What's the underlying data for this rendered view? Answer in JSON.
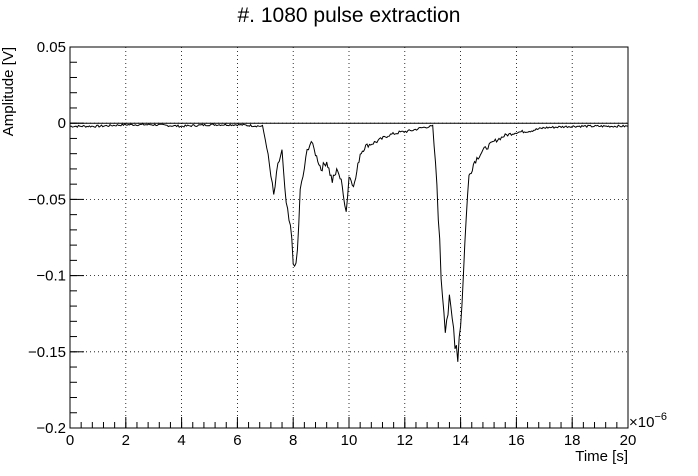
{
  "chart_data": {
    "type": "line",
    "title": "#. 1080 pulse extraction",
    "xlabel": "Time [s]",
    "ylabel": "Amplitude [V]",
    "x_multiplier_label": "×10",
    "x_multiplier_exp": "−6",
    "xlim": [
      0,
      20
    ],
    "ylim": [
      -0.2,
      0.05
    ],
    "grid": true,
    "x_ticks": [
      0,
      2,
      4,
      6,
      8,
      10,
      12,
      14,
      16,
      18,
      20
    ],
    "x_tick_labels": [
      "0",
      "2",
      "4",
      "6",
      "8",
      "10",
      "12",
      "14",
      "16",
      "18",
      "20"
    ],
    "y_ticks": [
      -0.2,
      -0.15,
      -0.1,
      -0.05,
      0,
      0.05
    ],
    "y_tick_labels": [
      "−0.2",
      "−0.15",
      "−0.1",
      "−0.05",
      "0",
      "0.05"
    ],
    "reference_line_y": 0,
    "series": [
      {
        "color": "#000000",
        "x": [
          0,
          1,
          2,
          3,
          4,
          5,
          6,
          6.9,
          7.05,
          7.2,
          7.3,
          7.45,
          7.6,
          7.7,
          7.8,
          7.95,
          8.05,
          8.15,
          8.25,
          8.35,
          8.5,
          8.65,
          8.8,
          9.0,
          9.2,
          9.4,
          9.6,
          9.8,
          9.9,
          10.0,
          10.2,
          10.4,
          10.6,
          11.0,
          11.4,
          11.8,
          12.2,
          12.6,
          13.0,
          13.15,
          13.3,
          13.45,
          13.6,
          13.75,
          13.9,
          14.0,
          14.1,
          14.2,
          14.3,
          14.5,
          14.8,
          15.2,
          15.6,
          16.0,
          16.5,
          17.0,
          18.0,
          19.0,
          20.0
        ],
        "y": [
          -0.002,
          -0.002,
          -0.001,
          -0.001,
          -0.002,
          -0.001,
          -0.001,
          -0.002,
          -0.015,
          -0.035,
          -0.048,
          -0.028,
          -0.018,
          -0.045,
          -0.06,
          -0.075,
          -0.1,
          -0.085,
          -0.045,
          -0.035,
          -0.018,
          -0.012,
          -0.02,
          -0.03,
          -0.025,
          -0.038,
          -0.03,
          -0.045,
          -0.058,
          -0.035,
          -0.04,
          -0.02,
          -0.015,
          -0.012,
          -0.008,
          -0.006,
          -0.005,
          -0.003,
          -0.002,
          -0.04,
          -0.1,
          -0.13,
          -0.12,
          -0.135,
          -0.15,
          -0.13,
          -0.1,
          -0.06,
          -0.035,
          -0.025,
          -0.018,
          -0.012,
          -0.008,
          -0.006,
          -0.005,
          -0.003,
          -0.002,
          -0.002,
          -0.002
        ]
      }
    ]
  }
}
